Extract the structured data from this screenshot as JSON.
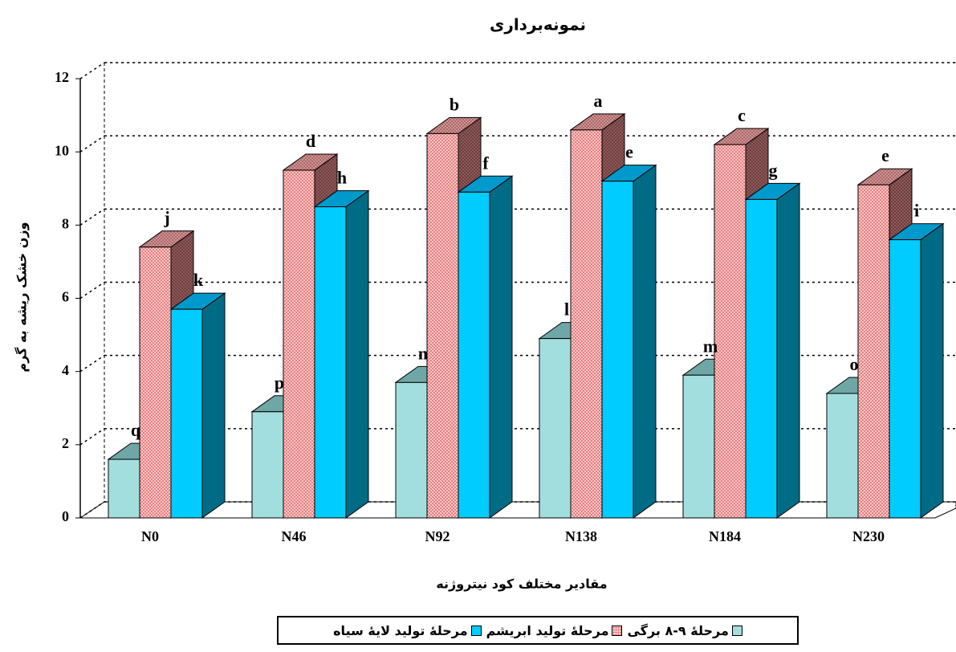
{
  "chart_data": {
    "type": "bar3d",
    "title": "نمونه‌برداری",
    "x_label": "مقادیر مختلف کود نیتروژنه",
    "y_label": "وزن خشک ریشه به گرم",
    "categories": [
      "N0",
      "N46",
      "N92",
      "N138",
      "N184",
      "N230"
    ],
    "series": [
      {
        "name": "مرحلهٔ ۹-۸ برگی",
        "color": "#a3dede",
        "values": [
          1.6,
          2.9,
          3.7,
          4.9,
          3.9,
          3.4
        ],
        "labels": [
          "q",
          "p",
          "n",
          "l",
          "m",
          "o"
        ]
      },
      {
        "name": "مرحلهٔ تولید ابریشم",
        "color": "#f8c8c8",
        "values": [
          7.4,
          9.5,
          10.5,
          10.6,
          10.2,
          9.1
        ],
        "labels": [
          "j",
          "d",
          "b",
          "a",
          "c",
          "e"
        ]
      },
      {
        "name": "مرحلهٔ تولید لایهٔ سیاه",
        "color": "#00ccff",
        "values": [
          5.7,
          8.5,
          8.9,
          9.2,
          8.7,
          7.6
        ],
        "labels": [
          "k",
          "h",
          "f",
          "e",
          "g",
          "i"
        ]
      }
    ],
    "ylim": [
      0,
      12
    ],
    "yticks": [
      0,
      2,
      4,
      6,
      8,
      10,
      12
    ],
    "grid": true,
    "legend": "bottom"
  }
}
